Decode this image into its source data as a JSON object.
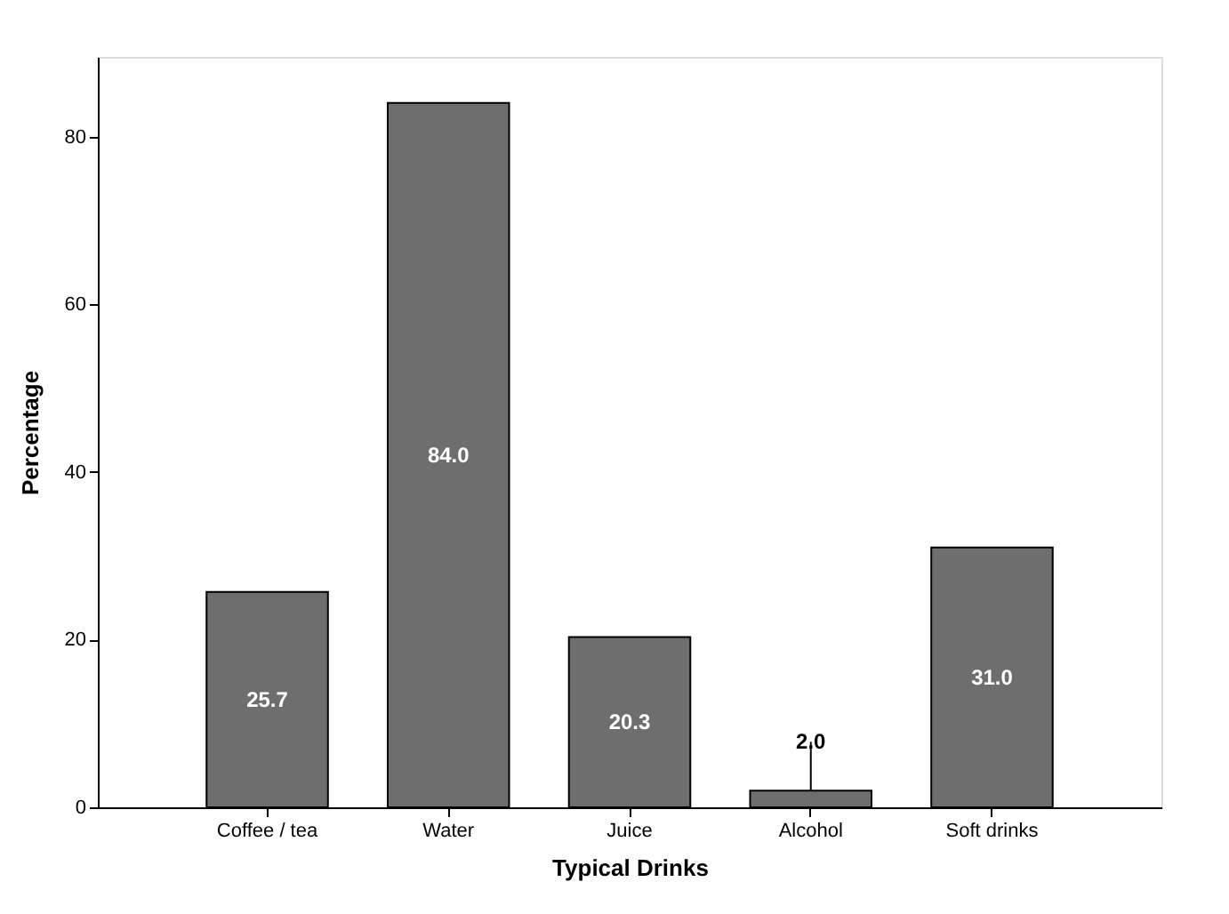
{
  "chart_data": {
    "type": "bar",
    "xlabel": "Typical Drinks",
    "ylabel": "Percentage",
    "categories": [
      "Coffee / tea",
      "Water",
      "Juice",
      "Alcohol",
      "Soft drinks"
    ],
    "values": [
      25.7,
      84.0,
      20.3,
      2.0,
      31.0
    ],
    "value_labels": [
      "25.7",
      "84.0",
      "20.3",
      "2.0",
      "31.0"
    ],
    "color": "#6e6e6e",
    "ylim": [
      0,
      89.5
    ],
    "yticks": [
      0,
      20,
      40,
      60,
      80
    ],
    "grid": false
  }
}
